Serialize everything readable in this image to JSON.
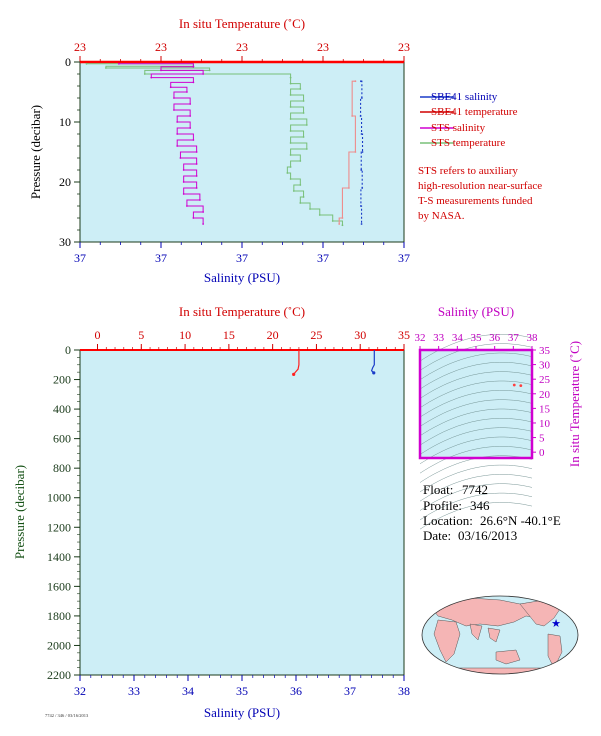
{
  "colors": {
    "plot_bg": "#cdeef6",
    "temp_axis": "#d10000",
    "sal_axis": "#0000b4",
    "sbe_salinity": "#1a3cc8",
    "sbe_temperature": "#ee8c8c",
    "sts_salinity": "#d000d0",
    "sts_temperature": "#78c078",
    "ts_frame": "#d000d0",
    "pressure_label_top": "#000000",
    "pressure_label_bottom": "#145014",
    "map_land": "#f5b5b5",
    "map_ocean": "#cdeef6",
    "float_marker": "#0000cc"
  },
  "legend": {
    "items": [
      {
        "label": "SBE41 salinity",
        "color": "#0000b4",
        "swatch": "#1a3cc8"
      },
      {
        "label": "SBE41 temperature",
        "color": "#d10000",
        "swatch": "#d10000"
      },
      {
        "label": "STS salinity",
        "color": "#c000c0",
        "swatch": "#d000d0"
      },
      {
        "label": "STS temperature",
        "color": "#d10000",
        "swatch": "#78c078"
      }
    ],
    "note_lines": [
      "STS refers to auxiliary",
      "high-resolution near-surface",
      "T-S measurements funded",
      "by NASA."
    ]
  },
  "info": {
    "float_label": "Float:",
    "float_value": "7742",
    "profile_label": "Profile:",
    "profile_value": "346",
    "location_label": "Location:",
    "location_value": "26.6°N  -40.1°E",
    "date_label": "Date:",
    "date_value": "03/16/2013"
  },
  "footer_code": "7742 / 346 / 03/16/2013",
  "chart_data": [
    {
      "type": "line",
      "title": "",
      "top_axis_label": "In situ Temperature (˚C)",
      "bottom_axis_label": "Salinity (PSU)",
      "left_axis_label": "Pressure (decibar)",
      "temp_tick_labels": [
        "23",
        "23",
        "23",
        "23",
        "23"
      ],
      "sal_tick_labels": [
        "37",
        "37",
        "37",
        "37",
        "37"
      ],
      "pressure_ticks": [
        0,
        10,
        20,
        30
      ],
      "ylim": [
        0,
        30
      ],
      "y_inverted": true,
      "temp_range": [
        22.95,
        23.05
      ],
      "sal_range": [
        36.95,
        37.05
      ],
      "grid": false,
      "legend_position": "right",
      "series": [
        {
          "name": "SBE41 salinity",
          "axis": "salinity",
          "points": [
            [
              37.0367,
              3.2
            ],
            [
              37.037,
              6.0
            ],
            [
              37.0366,
              9.0
            ],
            [
              37.0369,
              12.0
            ],
            [
              37.0372,
              15.0
            ],
            [
              37.0368,
              18.0
            ],
            [
              37.0371,
              21.0
            ],
            [
              37.0367,
              24.0
            ],
            [
              37.0369,
              27.0
            ]
          ]
        },
        {
          "name": "SBE41 temperature",
          "axis": "temperature",
          "points": [
            [
              23.035,
              3.2
            ],
            [
              23.034,
              9.0
            ],
            [
              23.035,
              15.0
            ],
            [
              23.033,
              21.0
            ],
            [
              23.031,
              26.0
            ],
            [
              23.03,
              27.0
            ]
          ]
        },
        {
          "name": "STS salinity",
          "axis": "salinity",
          "points": [
            [
              36.962,
              0.3
            ],
            [
              36.985,
              0.8
            ],
            [
              36.975,
              1.4
            ],
            [
              36.988,
              2.0
            ],
            [
              36.972,
              2.6
            ],
            [
              36.985,
              3.4
            ],
            [
              36.978,
              4.2
            ],
            [
              36.983,
              5.0
            ],
            [
              36.979,
              6.0
            ],
            [
              36.984,
              7.0
            ],
            [
              36.979,
              8.0
            ],
            [
              36.984,
              9.0
            ],
            [
              36.98,
              10.0
            ],
            [
              36.984,
              11.0
            ],
            [
              36.98,
              12.0
            ],
            [
              36.985,
              13.0
            ],
            [
              36.98,
              14.0
            ],
            [
              36.986,
              15.0
            ],
            [
              36.981,
              16.0
            ],
            [
              36.986,
              17.0
            ],
            [
              36.982,
              18.0
            ],
            [
              36.986,
              19.0
            ],
            [
              36.982,
              20.0
            ],
            [
              36.986,
              21.0
            ],
            [
              36.982,
              22.0
            ],
            [
              36.987,
              23.0
            ],
            [
              36.983,
              24.0
            ],
            [
              36.988,
              25.0
            ],
            [
              36.985,
              26.0
            ],
            [
              36.988,
              27.0
            ]
          ]
        },
        {
          "name": "STS temperature",
          "axis": "temperature",
          "points": [
            [
              22.952,
              0.3
            ],
            [
              22.985,
              0.7
            ],
            [
              22.958,
              1.0
            ],
            [
              22.99,
              1.4
            ],
            [
              22.97,
              2.0
            ],
            [
              23.015,
              2.6
            ],
            [
              23.015,
              3.6
            ],
            [
              23.018,
              4.5
            ],
            [
              23.015,
              5.5
            ],
            [
              23.019,
              6.5
            ],
            [
              23.015,
              7.5
            ],
            [
              23.019,
              8.5
            ],
            [
              23.015,
              9.5
            ],
            [
              23.02,
              10.5
            ],
            [
              23.015,
              11.5
            ],
            [
              23.019,
              12.5
            ],
            [
              23.015,
              13.5
            ],
            [
              23.02,
              14.5
            ],
            [
              23.015,
              15.5
            ],
            [
              23.018,
              16.5
            ],
            [
              23.015,
              17.5
            ],
            [
              23.014,
              18.5
            ],
            [
              23.015,
              19.5
            ],
            [
              23.018,
              20.5
            ],
            [
              23.016,
              21.5
            ],
            [
              23.019,
              22.5
            ],
            [
              23.018,
              23.5
            ],
            [
              23.021,
              24.5
            ],
            [
              23.024,
              25.5
            ],
            [
              23.028,
              26.5
            ],
            [
              23.031,
              27.2
            ]
          ]
        }
      ]
    },
    {
      "type": "line",
      "title": "",
      "top_axis_label": "In situ Temperature (˚C)",
      "bottom_axis_label": "Salinity (PSU)",
      "left_axis_label": "Pressure (decibar)",
      "temp_ticks": [
        0,
        5,
        10,
        15,
        20,
        25,
        30,
        35
      ],
      "sal_ticks": [
        32,
        33,
        34,
        35,
        36,
        37,
        38
      ],
      "pressure_ticks": [
        0,
        200,
        400,
        600,
        800,
        1000,
        1200,
        1400,
        1600,
        1800,
        2000,
        2200
      ],
      "ylim": [
        0,
        2200
      ],
      "y_inverted": true,
      "temp_range": [
        -2,
        35
      ],
      "sal_range": [
        32,
        38
      ],
      "grid": false,
      "series": [
        {
          "name": "SBE41 temperature",
          "axis": "temperature",
          "points": [
            [
              23.0,
              0
            ],
            [
              23.0,
              100
            ],
            [
              22.9,
              130
            ],
            [
              22.6,
              150
            ],
            [
              22.4,
              165
            ]
          ]
        },
        {
          "name": "SBE41 salinity",
          "axis": "salinity",
          "points": [
            [
              37.45,
              0
            ],
            [
              37.45,
              100
            ],
            [
              37.42,
              120
            ],
            [
              37.4,
              140
            ],
            [
              37.44,
              155
            ]
          ]
        }
      ]
    },
    {
      "type": "scatter",
      "title": "",
      "top_axis_label": "Salinity (PSU)",
      "right_axis_label": "In situ Temperature (˚C)",
      "x_ticks": [
        32,
        33,
        34,
        35,
        36,
        37,
        38
      ],
      "y_ticks": [
        0,
        5,
        10,
        15,
        20,
        25,
        30,
        35
      ],
      "xlim": [
        32,
        38
      ],
      "ylim": [
        -2,
        35
      ],
      "grid": false,
      "points": [
        [
          37.05,
          23.0
        ],
        [
          37.4,
          22.8
        ]
      ]
    }
  ],
  "map": {
    "marker_lat": 26.6,
    "marker_lon": -40.1
  }
}
